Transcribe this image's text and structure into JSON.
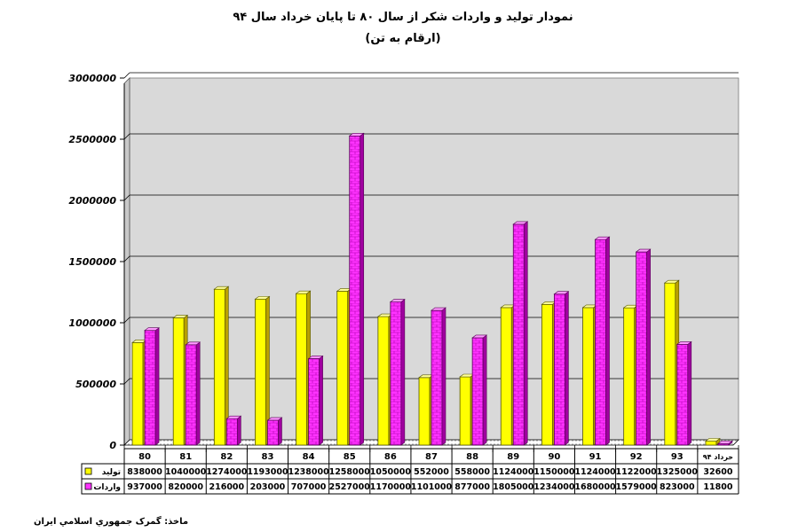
{
  "chart_data": {
    "type": "bar",
    "title": "نمودار تولید و واردات شکر از سال ۸۰ تا پایان خرداد سال ۹۴",
    "subtitle": "(ارقام به تن)",
    "categories": [
      "80",
      "81",
      "82",
      "83",
      "84",
      "85",
      "86",
      "87",
      "88",
      "89",
      "90",
      "91",
      "92",
      "93",
      "۹۴ خرداد"
    ],
    "series": [
      {
        "name": "تولید",
        "color": "#FFFF00",
        "values": [
          838000,
          1040000,
          1274000,
          1193000,
          1238000,
          1258000,
          1050000,
          552000,
          558000,
          1124000,
          1150000,
          1124000,
          1122000,
          1325000,
          32600
        ]
      },
      {
        "name": "واردات",
        "color": "#FF33FF",
        "values": [
          937000,
          820000,
          216000,
          203000,
          707000,
          2527000,
          1170000,
          1101000,
          877000,
          1805000,
          1234000,
          1680000,
          1579000,
          823000,
          11800
        ]
      }
    ],
    "ylim": [
      0,
      3000000
    ],
    "yticks": [
      0,
      500000,
      1000000,
      1500000,
      2000000,
      2500000,
      3000000
    ],
    "grid": true,
    "data_table": true
  },
  "source_note": "ماخذ: گمرک جمهوري اسلامي ايران"
}
